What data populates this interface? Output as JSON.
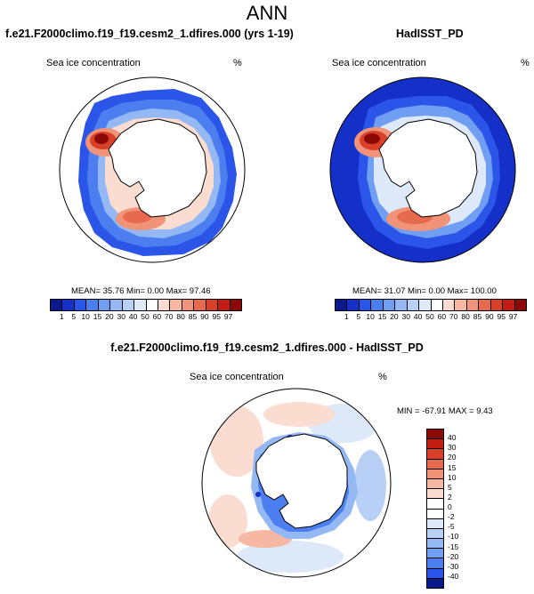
{
  "main_title": "ANN",
  "panel_left": {
    "title": "f.e21.F2000climo.f19_f19.cesm2_1.dfires.000 (yrs 1-19)",
    "var_label": "Sea ice concentration",
    "units": "%",
    "stats": "MEAN=  35.76  Min=   0.00  Max=  97.46"
  },
  "panel_right": {
    "title": "HadISST_PD",
    "var_label": "Sea ice concentration",
    "units": "%",
    "stats": "MEAN=  31.07  Min=   0.00  Max= 100.00"
  },
  "panel_diff": {
    "title": "f.e21.F2000climo.f19_f19.cesm2_1.dfires.000 - HadISST_PD",
    "var_label": "Sea ice concentration",
    "units": "%",
    "stats": "MIN = -67.91  MAX =   9.43"
  },
  "chart_data": [
    {
      "type": "heatmap",
      "projection": "south polar stereographic",
      "title": "f.e21.F2000climo.f19_f19.cesm2_1.dfires.000 (yrs 1-19)",
      "variable": "Sea ice concentration",
      "units": "%",
      "mean": 35.76,
      "min": 0.0,
      "max": 97.46,
      "colorbar_levels": [
        "1",
        "5",
        "10",
        "15",
        "20",
        "30",
        "40",
        "50",
        "60",
        "70",
        "80",
        "85",
        "90",
        "95",
        "97"
      ],
      "colorbar_colors": [
        "#0a1a8c",
        "#1530c8",
        "#2a55e8",
        "#4c7ef0",
        "#6f9ef2",
        "#93b8f4",
        "#b8d0f6",
        "#dde8f8",
        "#ffffff",
        "#fbdcd0",
        "#f6b8a2",
        "#f09378",
        "#e86a4e",
        "#d9402a",
        "#c21d12",
        "#8c0a05"
      ]
    },
    {
      "type": "heatmap",
      "projection": "south polar stereographic",
      "title": "HadISST_PD",
      "variable": "Sea ice concentration",
      "units": "%",
      "mean": 31.07,
      "min": 0.0,
      "max": 100.0,
      "colorbar_levels": [
        "1",
        "5",
        "10",
        "15",
        "20",
        "30",
        "40",
        "50",
        "60",
        "70",
        "80",
        "85",
        "90",
        "95",
        "97"
      ],
      "colorbar_colors": [
        "#0a1a8c",
        "#1530c8",
        "#2a55e8",
        "#4c7ef0",
        "#6f9ef2",
        "#93b8f4",
        "#b8d0f6",
        "#dde8f8",
        "#ffffff",
        "#fbdcd0",
        "#f6b8a2",
        "#f09378",
        "#e86a4e",
        "#d9402a",
        "#c21d12",
        "#8c0a05"
      ]
    },
    {
      "type": "heatmap",
      "projection": "south polar stereographic",
      "title": "f.e21.F2000climo.f19_f19.cesm2_1.dfires.000 - HadISST_PD",
      "variable": "Sea ice concentration",
      "units": "%",
      "min": -67.91,
      "max": 9.43,
      "colorbar_levels": [
        "40",
        "30",
        "20",
        "15",
        "10",
        "5",
        "2",
        "0",
        "-2",
        "-5",
        "-10",
        "-15",
        "-20",
        "-30",
        "-40"
      ],
      "colorbar_colors": [
        "#8c0a05",
        "#c21d12",
        "#d9402a",
        "#e86a4e",
        "#f09378",
        "#f6b8a2",
        "#fbdcd0",
        "#ffffff",
        "#ffffff",
        "#dde8f8",
        "#b8d0f6",
        "#93b8f4",
        "#6f9ef2",
        "#4c7ef0",
        "#2a55e8",
        "#0a1a8c"
      ]
    }
  ]
}
